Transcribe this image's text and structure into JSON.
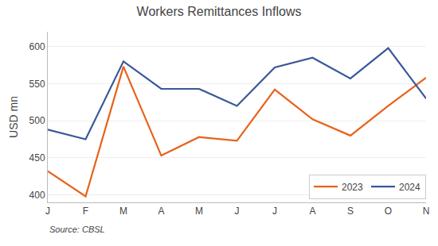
{
  "chart_data": {
    "type": "line",
    "title": "Workers Remittances Inflows",
    "categories": [
      "J",
      "F",
      "M",
      "A",
      "M",
      "J",
      "J",
      "A",
      "S",
      "O",
      "N"
    ],
    "series": [
      {
        "name": "2023",
        "color": "#E8621A",
        "values": [
          432,
          398,
          573,
          453,
          478,
          473,
          542,
          502,
          480,
          520,
          558
        ]
      },
      {
        "name": "2024",
        "color": "#3A5899",
        "values": [
          488,
          475,
          580,
          543,
          543,
          520,
          572,
          585,
          557,
          598,
          530
        ]
      }
    ],
    "ylabel": "USD mn",
    "ylim": [
      390,
      620
    ],
    "yticks": [
      400,
      450,
      500,
      550,
      600
    ],
    "grid": true,
    "legend": "lower right",
    "annotations": [
      "Source: CBSL"
    ]
  }
}
